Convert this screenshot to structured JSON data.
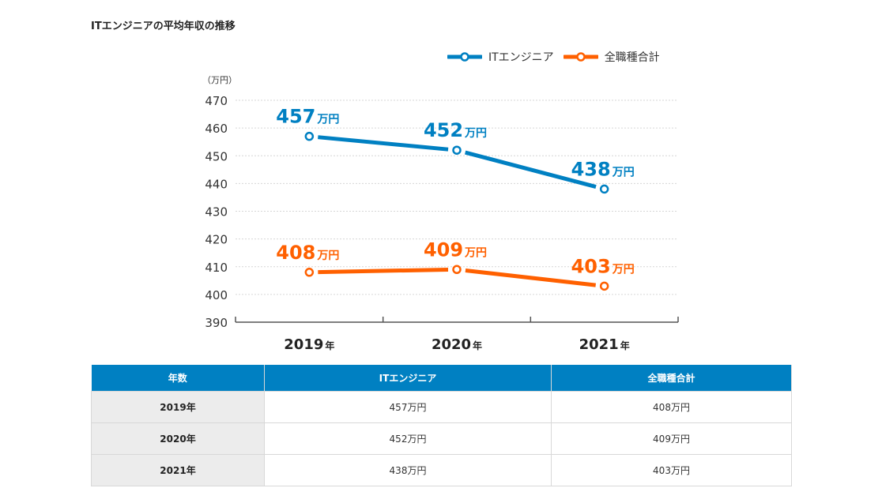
{
  "title": "ITエンジニアの平均年収の推移",
  "legend": [
    {
      "name": "ITエンジニア",
      "color": "#0080c2",
      "icon": "line-circle-marker-icon"
    },
    {
      "name": "全職種合計",
      "color": "#ff6000",
      "icon": "line-circle-marker-icon"
    }
  ],
  "chart_data": {
    "type": "line",
    "title": "ITエンジニアの平均年収の推移",
    "ylabel": "（万円）",
    "xlabel": "",
    "categories": [
      "2019年",
      "2020年",
      "2021年"
    ],
    "category_years": [
      "2019",
      "2020",
      "2021"
    ],
    "category_suffix": "年",
    "ylim": [
      390,
      470
    ],
    "yticks": [
      390,
      400,
      410,
      420,
      430,
      440,
      450,
      460,
      470
    ],
    "grid": true,
    "legend_position": "top-right",
    "series": [
      {
        "name": "ITエンジニア",
        "color": "#0080c2",
        "values": [
          457,
          452,
          438
        ],
        "labels": [
          "457",
          "452",
          "438"
        ],
        "label_unit": "万円"
      },
      {
        "name": "全職種合計",
        "color": "#ff6000",
        "values": [
          408,
          409,
          403
        ],
        "labels": [
          "408",
          "409",
          "403"
        ],
        "label_unit": "万円"
      }
    ]
  },
  "table": {
    "headers": [
      "年数",
      "ITエンジニア",
      "全職種合計"
    ],
    "rows": [
      [
        "2019年",
        "457万円",
        "408万円"
      ],
      [
        "2020年",
        "452万円",
        "409万円"
      ],
      [
        "2021年",
        "438万円",
        "403万円"
      ]
    ]
  }
}
